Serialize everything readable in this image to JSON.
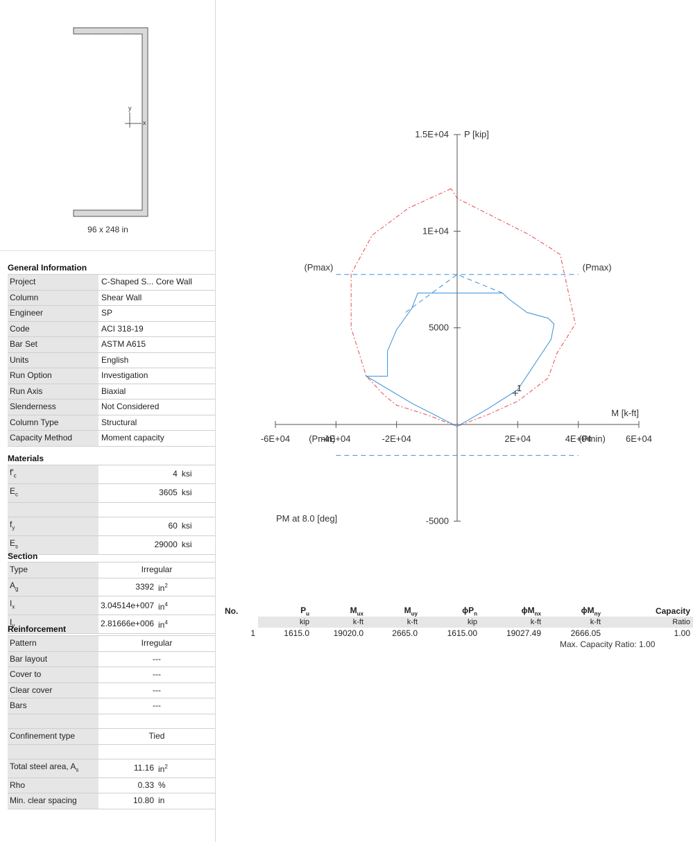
{
  "section_preview": {
    "dimension_label": "96 x 248 in",
    "axis_x": "x",
    "axis_y": "y"
  },
  "general_information": {
    "title": "General Information",
    "rows": [
      {
        "label": "Project",
        "value": "C-Shaped S... Core Wall"
      },
      {
        "label": "Column",
        "value": "Shear Wall"
      },
      {
        "label": "Engineer",
        "value": "SP"
      },
      {
        "label": "Code",
        "value": "ACI 318-19"
      },
      {
        "label": "Bar Set",
        "value": "ASTM A615"
      },
      {
        "label": "Units",
        "value": "English"
      },
      {
        "label": "Run Option",
        "value": "Investigation"
      },
      {
        "label": "Run Axis",
        "value": "Biaxial"
      },
      {
        "label": "Slenderness",
        "value": "Not Considered"
      },
      {
        "label": "Column Type",
        "value": "Structural"
      },
      {
        "label": "Capacity Method",
        "value": "Moment capacity"
      }
    ]
  },
  "materials": {
    "title": "Materials",
    "fc": {
      "label_main": "f'",
      "label_sub": "c",
      "value": "4",
      "unit": "ksi"
    },
    "ec": {
      "label_main": "E",
      "label_sub": "c",
      "value": "3605",
      "unit": "ksi"
    },
    "fy": {
      "label_main": "f",
      "label_sub": "y",
      "value": "60",
      "unit": "ksi"
    },
    "es": {
      "label_main": "E",
      "label_sub": "s",
      "value": "29000",
      "unit": "ksi"
    }
  },
  "section": {
    "title": "Section",
    "type": {
      "label": "Type",
      "value": "Irregular"
    },
    "ag": {
      "label_main": "A",
      "label_sub": "g",
      "value": "3392",
      "unit_main": "in",
      "unit_sup": "2"
    },
    "ix": {
      "label_main": "I",
      "label_sub": "x",
      "value": "3.04514e+007",
      "unit_main": "in",
      "unit_sup": "4"
    },
    "iy": {
      "label_main": "I",
      "label_sub": "y",
      "value": "2.81666e+006",
      "unit_main": "in",
      "unit_sup": "4"
    }
  },
  "reinforcement": {
    "title": "Reinforcement",
    "pattern": {
      "label": "Pattern",
      "value": "Irregular"
    },
    "bar_layout": {
      "label": "Bar layout",
      "value": "---"
    },
    "cover_to": {
      "label": "Cover to",
      "value": "---"
    },
    "clear_cover": {
      "label": "Clear cover",
      "value": "---"
    },
    "bars": {
      "label": "Bars",
      "value": "---"
    },
    "confinement": {
      "label": "Confinement type",
      "value": "Tied"
    },
    "steel_area": {
      "label_main": "Total steel area, A",
      "label_sub": "s",
      "value": "11.16",
      "unit_main": "in",
      "unit_sup": "2"
    },
    "rho": {
      "label": "Rho",
      "value": "0.33",
      "unit": "%"
    },
    "min_spacing": {
      "label": "Min. clear spacing",
      "value": "10.80",
      "unit": "in"
    }
  },
  "chart_data": {
    "type": "line",
    "xlabel": "M [k-ft]",
    "ylabel": "P [kip]",
    "xlim": [
      -60000,
      60000
    ],
    "ylim": [
      -5000,
      15000
    ],
    "x_tick_labels": [
      "-6E+04",
      "-4E+04",
      "-2E+04",
      "2E+04",
      "4E+04",
      "6E+04"
    ],
    "y_tick_labels": [
      "1.5E+04",
      "1E+04",
      "5000",
      "-5000"
    ],
    "pmax_label": "(Pmax)",
    "pmin_label": "(Pmin)",
    "caption": "PM at 8.0 [deg]",
    "nominal_curve": {
      "color": "#e8484e",
      "x": [
        -2000,
        -16000,
        -28000,
        -35000,
        -35000,
        -30000,
        -24000,
        -20000,
        -10000,
        0,
        10000,
        20000,
        30000,
        33000,
        39000,
        34000,
        24000,
        0,
        -2000
      ],
      "y": [
        12200,
        11200,
        9800,
        7800,
        5000,
        2500,
        1500,
        1000,
        500,
        -100,
        500,
        1200,
        2400,
        3700,
        5200,
        8800,
        9800,
        11700,
        12200
      ]
    },
    "design_curve": {
      "color": "#3a8fd6",
      "x": [
        0,
        -15000,
        -30000,
        -23000,
        -23000,
        -20000,
        -15000,
        -13000,
        0,
        15000,
        17000,
        23000,
        30000,
        32000,
        31000,
        20000,
        10000,
        0
      ],
      "y": [
        -100,
        1100,
        2500,
        2500,
        3800,
        4900,
        6000,
        6800,
        6800,
        6800,
        6500,
        5800,
        5500,
        5200,
        4400,
        1800,
        800,
        -100
      ]
    },
    "pmax_value": 7760,
    "pmin_value": -1600,
    "pmax_extent": [
      -40000,
      40000
    ],
    "pmin_extent": [
      -40000,
      40000
    ],
    "point": {
      "label": "1",
      "x": 19200,
      "y": 1615
    },
    "pmax_line_color": "#3a8fd6"
  },
  "results": {
    "headers": [
      {
        "main": "No.",
        "sub": ""
      },
      {
        "main": "P",
        "sub": "u"
      },
      {
        "main": "M",
        "sub": "ux"
      },
      {
        "main": "M",
        "sub": "uy"
      },
      {
        "main": "ϕP",
        "sub": "n"
      },
      {
        "main": "ϕM",
        "sub": "nx"
      },
      {
        "main": "ϕM",
        "sub": "ny"
      },
      {
        "main": "Capacity",
        "sub": ""
      }
    ],
    "units": [
      "",
      "kip",
      "k-ft",
      "k-ft",
      "kip",
      "k-ft",
      "k-ft",
      "Ratio"
    ],
    "rows": [
      [
        "1",
        "1615.0",
        "19020.0",
        "2665.0",
        "1615.00",
        "19027.49",
        "2666.05",
        "1.00"
      ]
    ],
    "max_ratio": "Max. Capacity Ratio: 1.00"
  }
}
